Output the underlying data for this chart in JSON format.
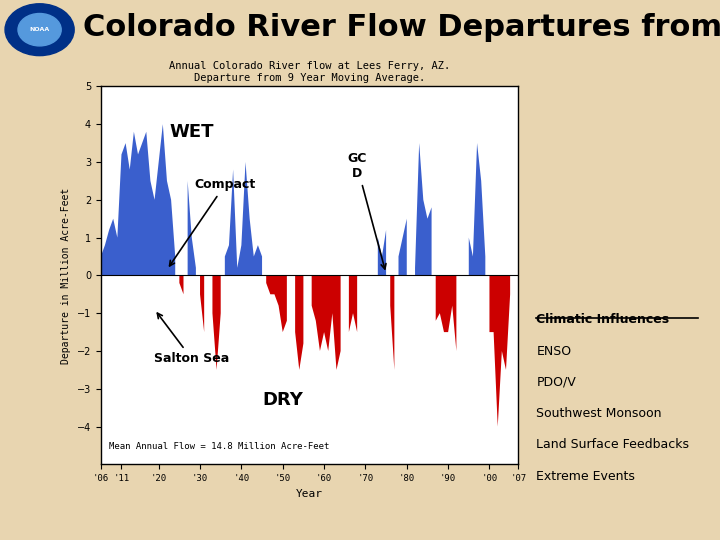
{
  "title": "Colorado River Flow Departures from Average",
  "chart_title": "Annual Colorado River flow at Lees Ferry, AZ.\nDeparture from 9 Year Moving Average.",
  "xlabel": "Year",
  "ylabel": "Departure in Million Acre-Feet",
  "mean_label": "Mean Annual Flow = 14.8 Million Acre-Feet",
  "wet_label": "WET",
  "dry_label": "DRY",
  "compact_label": "Compact",
  "gcd_label": "GC\nD",
  "salton_label": "Salton Sea",
  "climatic_header": "Climatic Influences",
  "climatic_items": [
    "ENSO",
    "PDO/V",
    "Southwest Monsoon",
    "Land Surface Feedbacks",
    "Extreme Events"
  ],
  "bg_color": "#e8d5b0",
  "plot_bg_color": "#ffffff",
  "blue_color": "#3a5fcd",
  "red_color": "#cc0000",
  "title_fontsize": 22,
  "ylim": [
    -5,
    5
  ],
  "yticks": [
    -4,
    -3,
    -2,
    -1,
    0,
    1,
    2,
    3,
    4,
    5
  ],
  "xtick_vals": [
    1906,
    1911,
    1920,
    1930,
    1940,
    1950,
    1960,
    1970,
    1980,
    1990,
    2000,
    2007
  ],
  "years": [
    1906,
    1907,
    1908,
    1909,
    1910,
    1911,
    1912,
    1913,
    1914,
    1915,
    1916,
    1917,
    1918,
    1919,
    1920,
    1921,
    1922,
    1923,
    1924,
    1925,
    1926,
    1927,
    1928,
    1929,
    1930,
    1931,
    1932,
    1933,
    1934,
    1935,
    1936,
    1937,
    1938,
    1939,
    1940,
    1941,
    1942,
    1943,
    1944,
    1945,
    1946,
    1947,
    1948,
    1949,
    1950,
    1951,
    1952,
    1953,
    1954,
    1955,
    1956,
    1957,
    1958,
    1959,
    1960,
    1961,
    1962,
    1963,
    1964,
    1965,
    1966,
    1967,
    1968,
    1969,
    1970,
    1971,
    1972,
    1973,
    1974,
    1975,
    1976,
    1977,
    1978,
    1979,
    1980,
    1981,
    1982,
    1983,
    1984,
    1985,
    1986,
    1987,
    1988,
    1989,
    1990,
    1991,
    1992,
    1993,
    1994,
    1995,
    1996,
    1997,
    1998,
    1999,
    2000,
    2001,
    2002,
    2003,
    2004,
    2005,
    2006
  ],
  "values": [
    0.5,
    0.8,
    1.2,
    1.5,
    1.0,
    3.2,
    3.5,
    2.8,
    3.8,
    3.2,
    3.5,
    3.8,
    2.5,
    2.0,
    3.0,
    4.0,
    2.5,
    2.0,
    0.5,
    -0.2,
    -0.5,
    2.5,
    1.0,
    0.2,
    -0.5,
    -1.5,
    1.0,
    -1.0,
    -2.5,
    -1.0,
    0.5,
    0.8,
    2.8,
    0.2,
    0.8,
    3.0,
    1.5,
    0.5,
    0.8,
    0.5,
    -0.2,
    -0.5,
    -0.5,
    -0.8,
    -1.5,
    -1.2,
    0.5,
    -1.5,
    -2.5,
    -1.8,
    0.2,
    -0.8,
    -1.2,
    -2.0,
    -1.5,
    -2.0,
    -1.0,
    -2.5,
    -2.0,
    0.8,
    -1.5,
    -1.0,
    -1.5,
    0.5,
    -0.5,
    0.5,
    -1.5,
    1.0,
    0.5,
    1.2,
    -0.8,
    -2.5,
    0.5,
    1.0,
    1.5,
    -0.5,
    0.2,
    3.5,
    2.0,
    1.5,
    1.8,
    -1.2,
    -1.0,
    -1.5,
    -1.5,
    -0.8,
    -2.0,
    0.2,
    -2.5,
    1.0,
    0.5,
    3.5,
    2.5,
    0.5,
    -1.5,
    -1.5,
    -4.0,
    -2.0,
    -2.5,
    -0.5,
    0.8
  ]
}
